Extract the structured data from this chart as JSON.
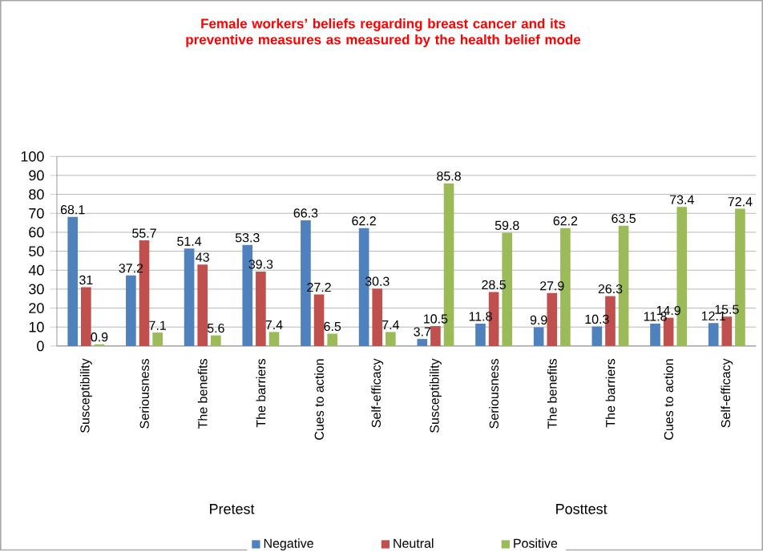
{
  "chart_data": {
    "type": "bar",
    "title": "Female workers’ beliefs regarding breast cancer and its preventive measures as measured by the health belief mode",
    "categories": [
      "Susceptibility",
      "Seriousness",
      "The benefits",
      "The barriers",
      "Cues to action",
      "Self-efficacy",
      "Susceptibility",
      "Seriousness",
      "The benefits",
      "The barriers",
      "Cues to action",
      "Self-efficacy"
    ],
    "series": [
      {
        "name": "Negative",
        "color": "#4f81bd",
        "values": [
          68.1,
          37.2,
          51.4,
          53.3,
          66.3,
          62.2,
          3.7,
          11.8,
          9.9,
          10.3,
          11.8,
          12.1
        ]
      },
      {
        "name": "Neutral",
        "color": "#c0504d",
        "values": [
          31,
          55.7,
          43,
          39.3,
          27.2,
          30.3,
          10.5,
          28.5,
          27.9,
          26.3,
          14.9,
          15.5
        ]
      },
      {
        "name": "Positive",
        "color": "#9bbb59",
        "values": [
          0.9,
          7.1,
          5.6,
          7.4,
          6.5,
          7.4,
          85.8,
          59.8,
          62.2,
          63.5,
          73.4,
          72.4
        ]
      }
    ],
    "annotations": [
      "Pretest",
      "Posttest"
    ],
    "ylim": [
      0,
      100
    ],
    "yticks": [
      0,
      10,
      20,
      30,
      40,
      50,
      60,
      70,
      80,
      90,
      100
    ],
    "grid": "y",
    "legend": "bottom",
    "data_labels": true
  }
}
